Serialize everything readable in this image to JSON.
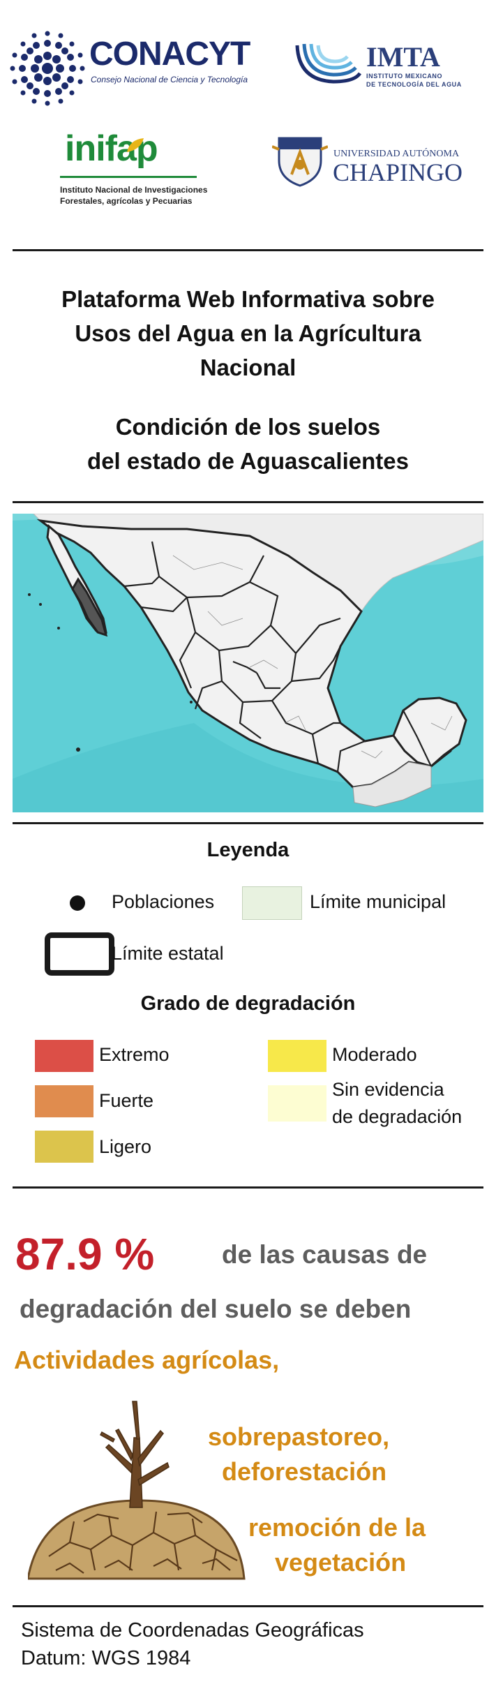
{
  "logos": {
    "conacyt": {
      "name": "CONACYT",
      "subtitle": "Consejo Nacional de Ciencia y Tecnología"
    },
    "imta": {
      "name": "IMTA",
      "subtitle_line1": "INSTITUTO MEXICANO",
      "subtitle_line2": "DE TECNOLOGÍA DEL AGUA"
    },
    "inifap": {
      "name": "inifap",
      "subtitle_line1": "Instituto Nacional de Investigaciones",
      "subtitle_line2": "Forestales, agrícolas y Pecuarias"
    },
    "chapingo": {
      "subtitle": "UNIVERSIDAD AUTÓNOMA",
      "name": "CHAPINGO"
    }
  },
  "title": {
    "line1": "Plataforma Web Informativa sobre",
    "line2": "Usos del Agua en la Agrícultura",
    "line3": "Nacional"
  },
  "subtitle": {
    "line1": "Condición de los suelos",
    "line2": "del estado de Aguascalientes"
  },
  "legend": {
    "heading": "Leyenda",
    "poblaciones": "Poblaciones",
    "limite_municipal": "Límite municipal",
    "limite_estatal": "Límite estatal",
    "degradation_heading": "Grado de degradación",
    "items": [
      {
        "label": "Extremo",
        "color": "#dc4f47"
      },
      {
        "label": "Fuerte",
        "color": "#e08c4e"
      },
      {
        "label": "Ligero",
        "color": "#dcc44c"
      },
      {
        "label": "Moderado",
        "color": "#f7e84a"
      },
      {
        "label_line1": "Sin evidencia",
        "label_line2": "de degradación",
        "color": "#fdfdd2"
      }
    ],
    "municipal_color": "#e8f2e0"
  },
  "stats": {
    "percent": "87.9 %",
    "text_line1": "de las causas  de",
    "text_line2": "degradación del suelo se deben",
    "cause1": "Actividades agrícolas,",
    "cause2_line1": "sobrepastoreo,",
    "cause2_line2": "deforestación",
    "cause3_line1": "remoción de la",
    "cause3_line2": "vegetación"
  },
  "footer": {
    "line1": "Sistema de Coordenadas Geográficas",
    "line2": "Datum: WGS 1984"
  },
  "colors": {
    "sea": "#5fcfd6",
    "land": "#f2f2f2",
    "highlight_state": "#555555",
    "percent_red": "#c3202a",
    "orange_text": "#d48a14",
    "gray_text": "#5d5d5d"
  }
}
